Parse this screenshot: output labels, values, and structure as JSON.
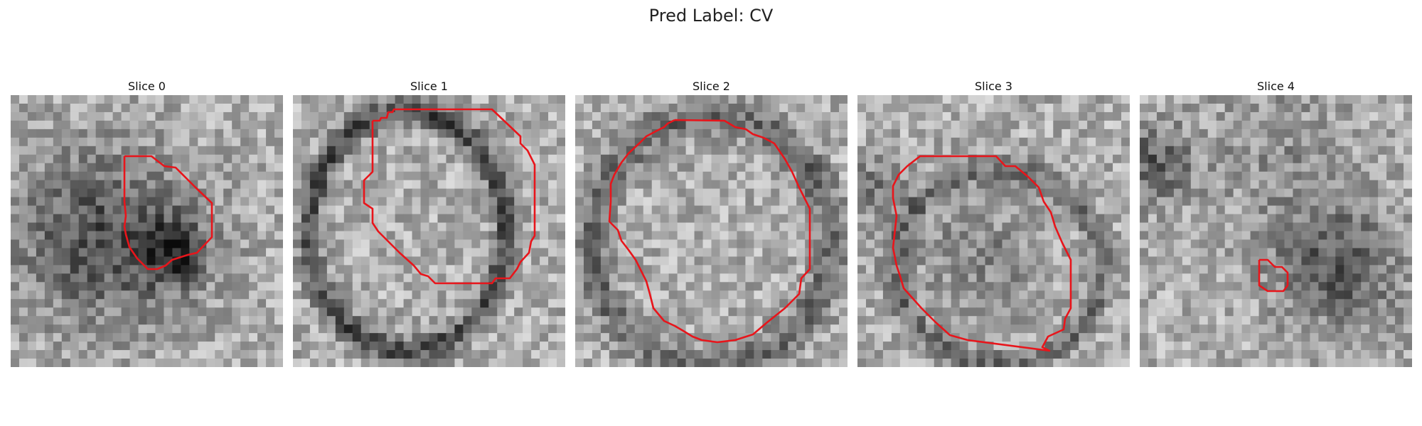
{
  "figure": {
    "title": "Pred Label: CV"
  },
  "panels": [
    {
      "title": "Slice 0"
    },
    {
      "title": "Slice 1"
    },
    {
      "title": "Slice 2"
    },
    {
      "title": "Slice 3"
    },
    {
      "title": "Slice 4"
    }
  ],
  "colors": {
    "contour": "#e8151b"
  }
}
